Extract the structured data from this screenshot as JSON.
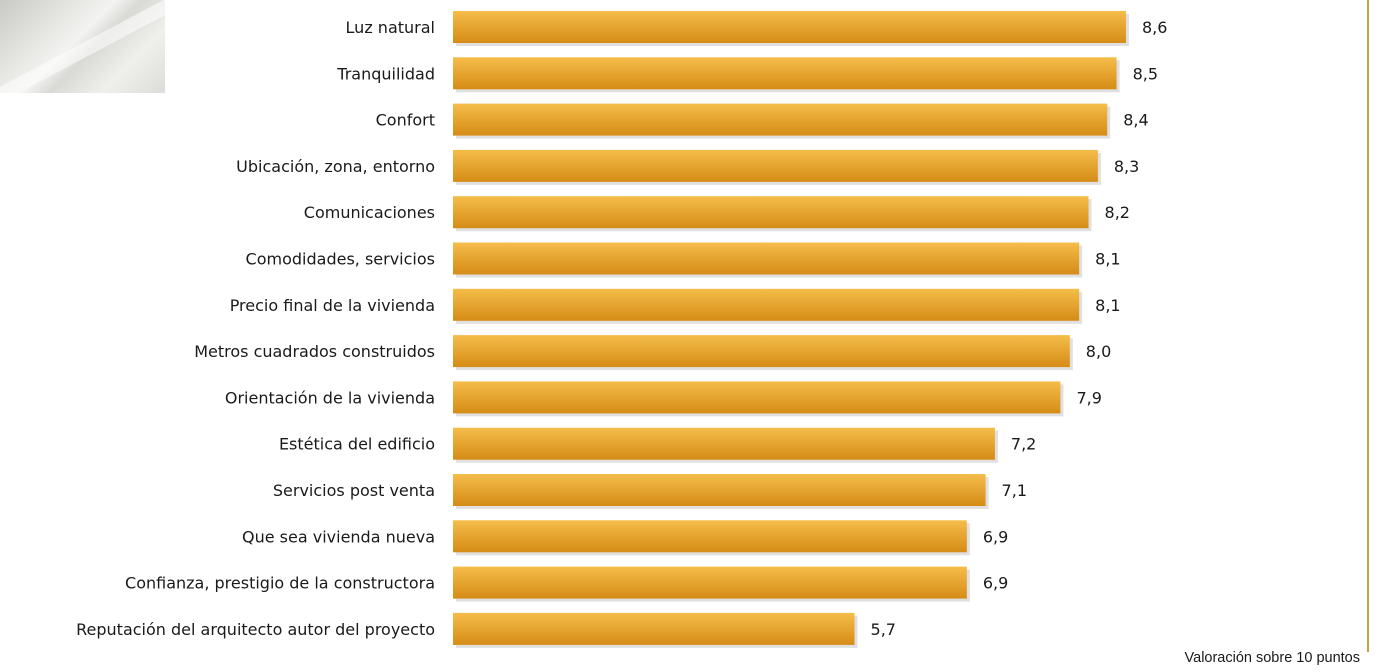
{
  "note": "Valoración sobre 10 puntos",
  "colors": {
    "bar_light": "#f5bd4a",
    "bar_dark": "#d58c16",
    "frame": "#caa347"
  },
  "chart_data": {
    "type": "bar",
    "orientation": "horizontal",
    "title": "",
    "xlabel": "",
    "ylabel": "",
    "xlim": [
      0,
      10
    ],
    "grid": false,
    "legend": "none",
    "categories": [
      "Luz natural",
      "Tranquilidad",
      "Confort",
      "Ubicación, zona, entorno",
      "Comunicaciones",
      "Comodidades, servicios",
      "Precio final de la vivienda",
      "Metros cuadrados construidos",
      "Orientación de la vivienda",
      "Estética del edificio",
      "Servicios post venta",
      "Que sea vivienda nueva",
      "Confianza, prestigio de la constructora",
      "Reputación del arquitecto autor del proyecto"
    ],
    "values": [
      8.6,
      8.5,
      8.4,
      8.3,
      8.2,
      8.1,
      8.1,
      8.0,
      7.9,
      7.2,
      7.1,
      6.9,
      6.9,
      5.7
    ],
    "value_labels": [
      "8,6",
      "8,5",
      "8,4",
      "8,3",
      "8,2",
      "8,1",
      "8,1",
      "8,0",
      "7,9",
      "7,2",
      "7,1",
      "6,9",
      "6,9",
      "5,7"
    ]
  }
}
